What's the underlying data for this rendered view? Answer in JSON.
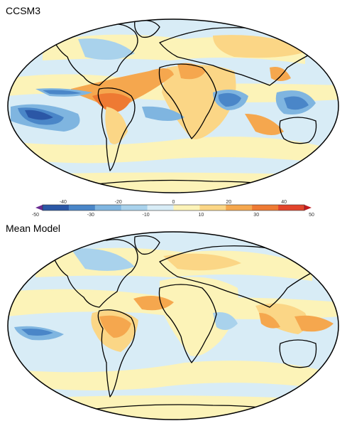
{
  "panels": [
    {
      "title": "CCSM3"
    },
    {
      "title": "Mean Model"
    }
  ],
  "colorbar": {
    "upper_ticks": [
      "-40",
      "-20",
      "0",
      "20",
      "40"
    ],
    "lower_ticks": [
      "-50",
      "-30",
      "-10",
      "10",
      "30",
      "50"
    ],
    "colors": [
      "#6a2c91",
      "#2b57a6",
      "#4a86c8",
      "#7fb5e0",
      "#a9d2ec",
      "#d8ecf6",
      "#fcf3b8",
      "#fbd686",
      "#f5a74e",
      "#ee7a33",
      "#e2442b",
      "#c0191e"
    ]
  },
  "map_colors": {
    "ocean_base": "#d8ecf6",
    "light_blue": "#a9d2ec",
    "mid_blue": "#7fb5e0",
    "dark_blue": "#4a86c8",
    "deep_blue": "#2b57a6",
    "pale_yellow": "#fcf3b8",
    "yellow": "#fbd686",
    "orange": "#f5a74e",
    "dark_orange": "#ee7a33",
    "coast": "#000000"
  }
}
